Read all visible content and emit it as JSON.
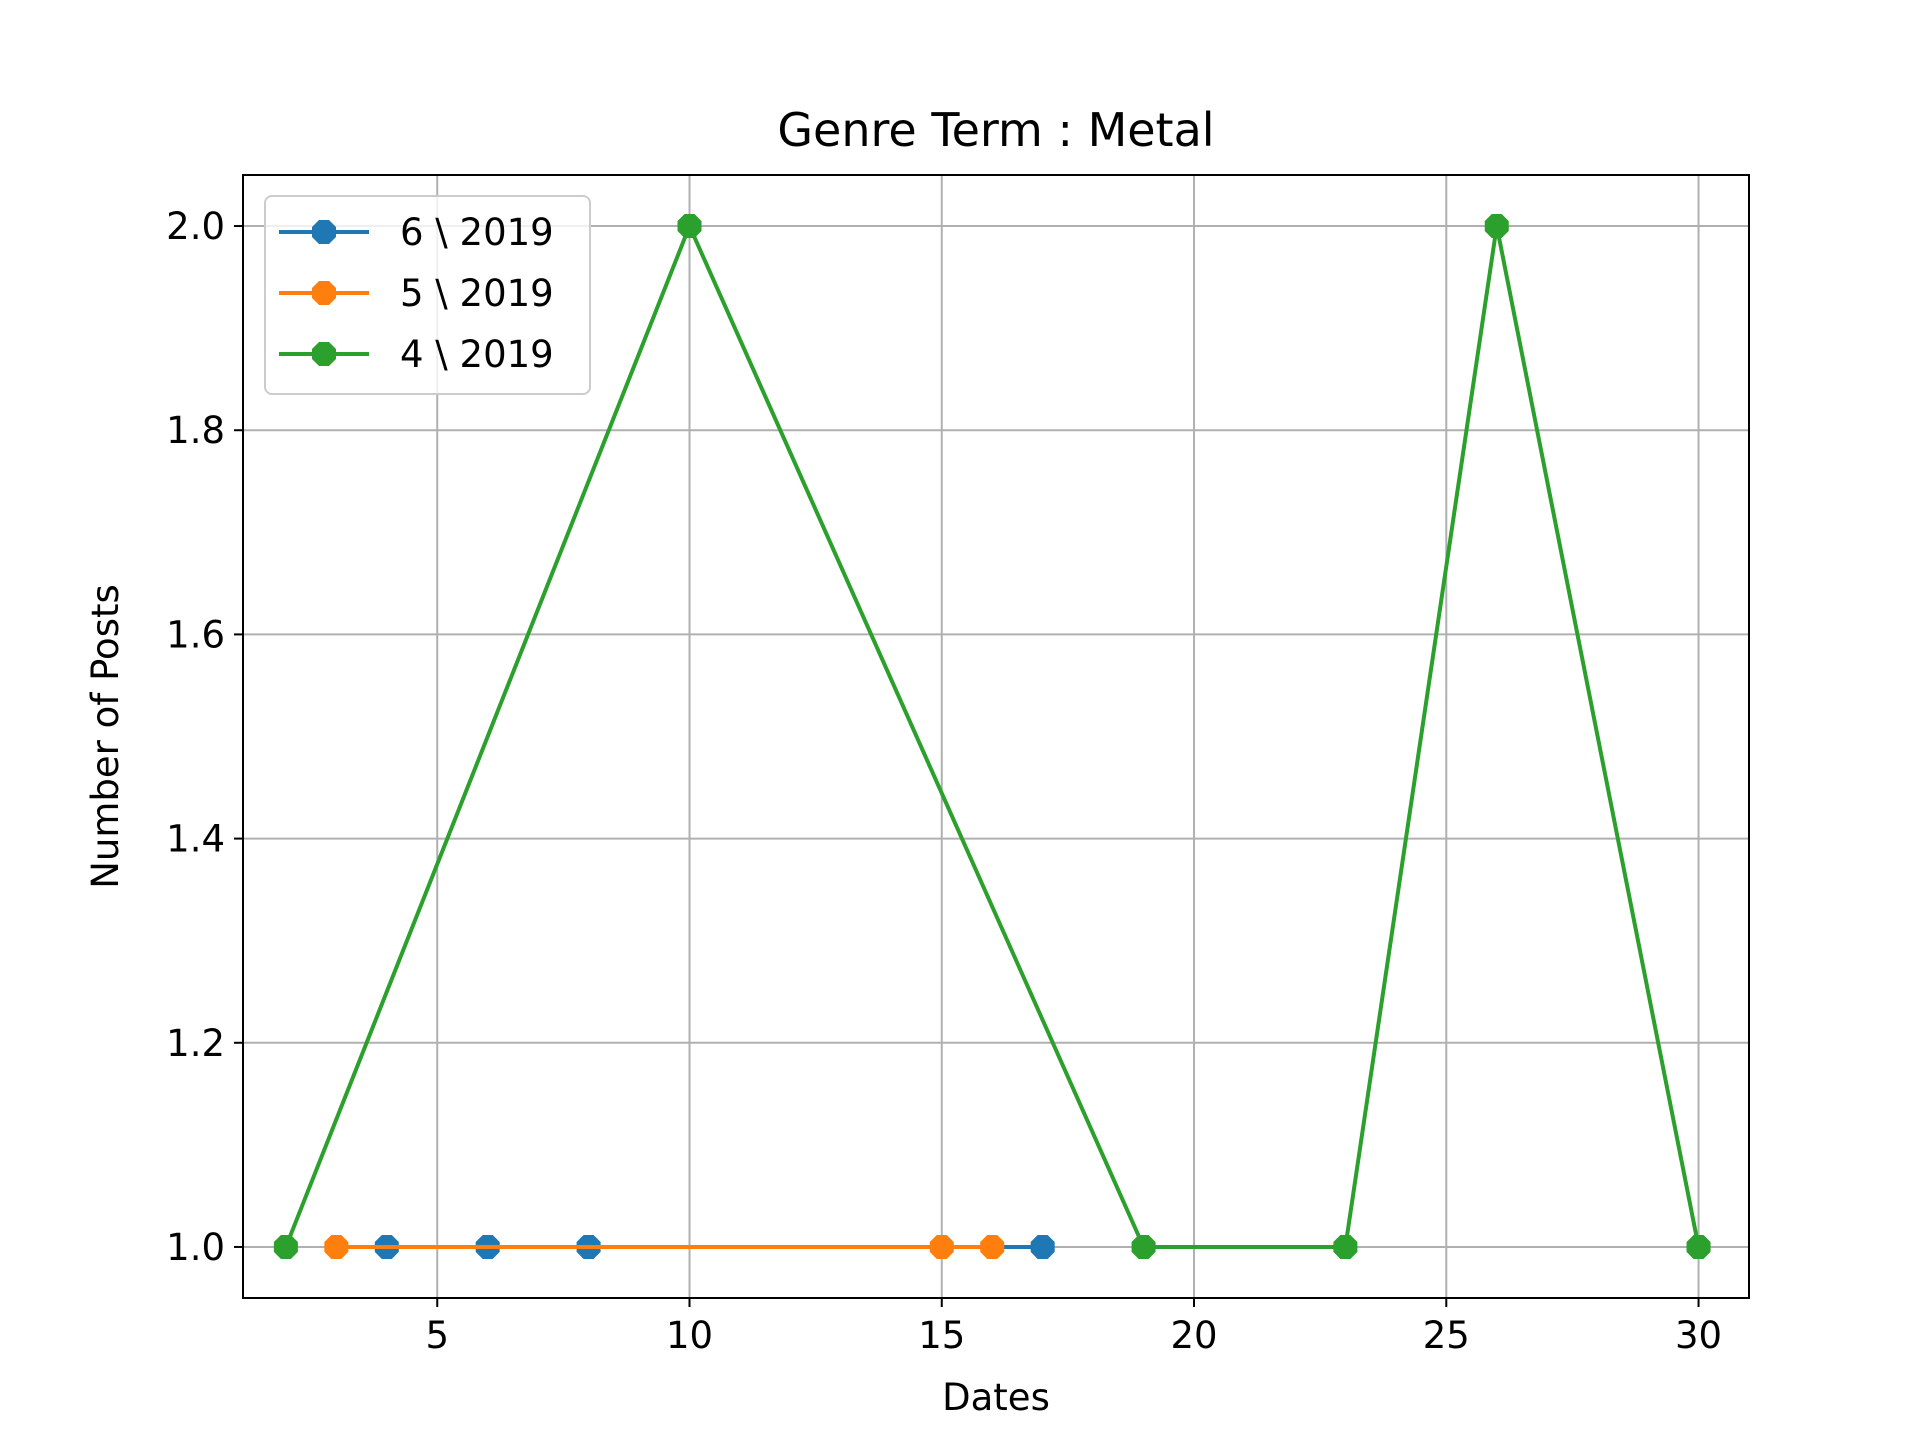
{
  "chart_data": {
    "type": "line",
    "title": "Genre Term : Metal",
    "xlabel": "Dates",
    "ylabel": "Number of Posts",
    "xlim": [
      1.15,
      31.0
    ],
    "ylim": [
      0.95,
      2.05
    ],
    "xticks": [
      5,
      10,
      15,
      20,
      25,
      30
    ],
    "xtick_labels": [
      "5",
      "10",
      "15",
      "20",
      "25",
      "30"
    ],
    "yticks": [
      1.0,
      1.2,
      1.4,
      1.6,
      1.8,
      2.0
    ],
    "ytick_labels": [
      "1.0",
      "1.2",
      "1.4",
      "1.6",
      "1.8",
      "2.0"
    ],
    "grid": true,
    "legend_position": "upper-left",
    "series": [
      {
        "name": "6 \\ 2019",
        "color": "#1f77b4",
        "x": [
          4,
          6,
          8,
          17
        ],
        "y": [
          1,
          1,
          1,
          1
        ]
      },
      {
        "name": "5 \\ 2019",
        "color": "#ff7f0e",
        "x": [
          3,
          15,
          16
        ],
        "y": [
          1,
          1,
          1
        ]
      },
      {
        "name": "4 \\ 2019",
        "color": "#2ca02c",
        "x": [
          2,
          10,
          19,
          23,
          26,
          30
        ],
        "y": [
          1,
          2,
          1,
          1,
          2,
          1
        ]
      }
    ]
  }
}
